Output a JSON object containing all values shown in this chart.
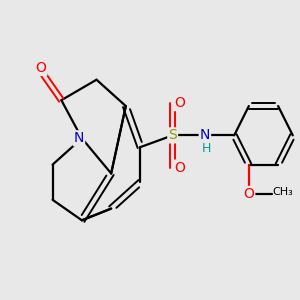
{
  "background_color": "#e8e8e8",
  "bond_color": "#000000",
  "atom_colors": {
    "O": "#ff0000",
    "N": "#0000cc",
    "S": "#999900",
    "H": "#009999",
    "C": "#000000"
  },
  "figsize": [
    3.0,
    3.0
  ],
  "dpi": 100
}
